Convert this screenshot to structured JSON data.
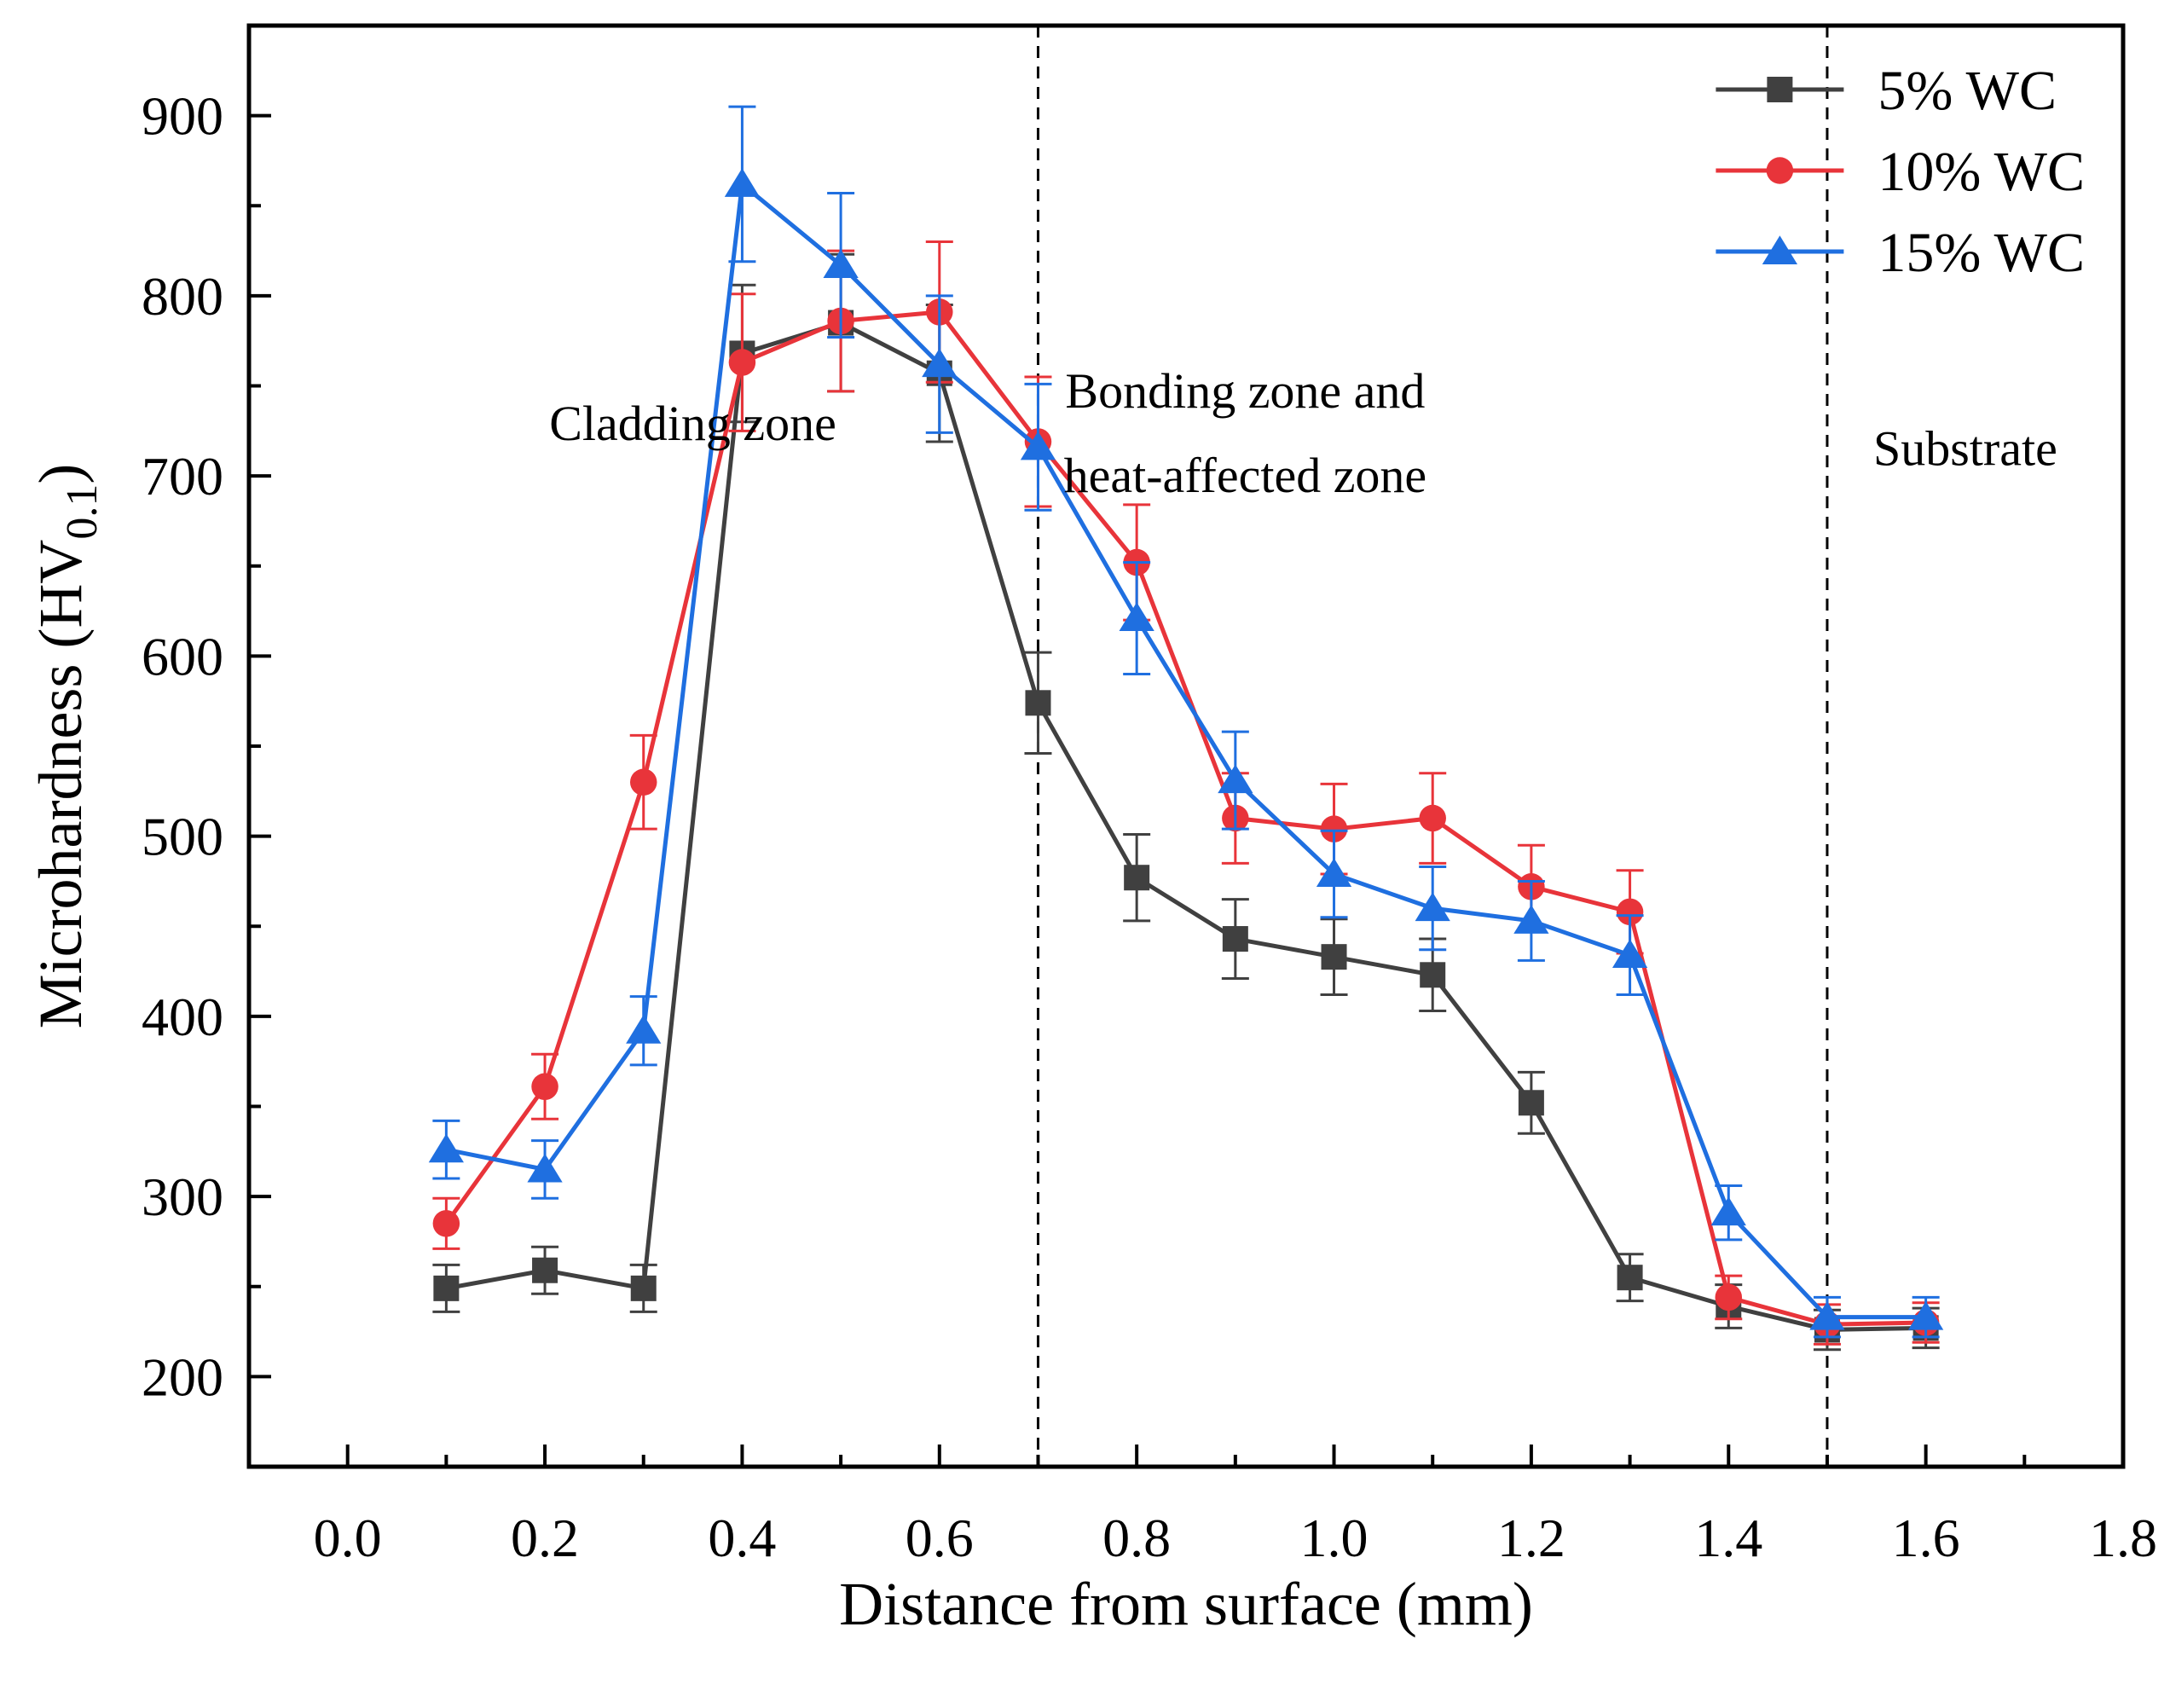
{
  "chart_data": {
    "type": "line",
    "title": "",
    "xlabel": "Distance from surface (mm)",
    "ylabel": "Microhardness (HV",
    "ylabel_subscript": "0.1",
    "ylabel_close": ")",
    "xlim": [
      -0.1,
      1.8
    ],
    "ylim": [
      150,
      950
    ],
    "xticks": [
      0.0,
      0.2,
      0.4,
      0.6,
      0.8,
      1.0,
      1.2,
      1.4,
      1.6,
      1.8
    ],
    "xtick_labels": [
      "0.0",
      "0.2",
      "0.4",
      "0.6",
      "0.8",
      "1.0",
      "1.2",
      "1.4",
      "1.6",
      "1.8"
    ],
    "yticks": [
      200,
      300,
      400,
      500,
      600,
      700,
      800,
      900
    ],
    "ytick_labels": [
      "200",
      "300",
      "400",
      "500",
      "600",
      "700",
      "800",
      "900"
    ],
    "grid": false,
    "legend_position": "top-right",
    "x": [
      0.1,
      0.2,
      0.3,
      0.4,
      0.5,
      0.6,
      0.7,
      0.8,
      0.9,
      1.0,
      1.1,
      1.2,
      1.3,
      1.4,
      1.5,
      1.6
    ],
    "series": [
      {
        "name": "5% WC",
        "color": "#404040",
        "marker": "square",
        "values": [
          249,
          259,
          249,
          768,
          785,
          757,
          574,
          477,
          443,
          433,
          423,
          352,
          255,
          239,
          226,
          227
        ],
        "errors": [
          13,
          13,
          13,
          38,
          38,
          38,
          28,
          24,
          22,
          21,
          20,
          17,
          13,
          12,
          11,
          11
        ]
      },
      {
        "name": "10% WC",
        "color": "#e8343a",
        "marker": "circle",
        "values": [
          285,
          361,
          530,
          763,
          786,
          791,
          719,
          652,
          510,
          504,
          510,
          472,
          458,
          244,
          229,
          230
        ],
        "errors": [
          14,
          18,
          26,
          38,
          39,
          39,
          36,
          32,
          25,
          25,
          25,
          23,
          23,
          12,
          11,
          11
        ]
      },
      {
        "name": "15% WC",
        "color": "#1f6fe0",
        "marker": "triangle",
        "values": [
          326,
          315,
          392,
          862,
          817,
          762,
          716,
          621,
          531,
          479,
          460,
          453,
          434,
          291,
          233,
          233
        ],
        "errors": [
          16,
          16,
          19,
          43,
          40,
          38,
          35,
          31,
          27,
          24,
          23,
          22,
          22,
          15,
          11,
          11
        ]
      }
    ],
    "vlines": [
      0.7,
      1.5
    ],
    "annotations": [
      {
        "text": "Cladding zone",
        "x": 0.35,
        "y": 720
      },
      {
        "text": "Bonding zone and",
        "x": 0.91,
        "y": 738
      },
      {
        "text": "heat-affected zone",
        "x": 0.91,
        "y": 691
      },
      {
        "text": "Substrate",
        "x": 1.64,
        "y": 706
      }
    ]
  }
}
